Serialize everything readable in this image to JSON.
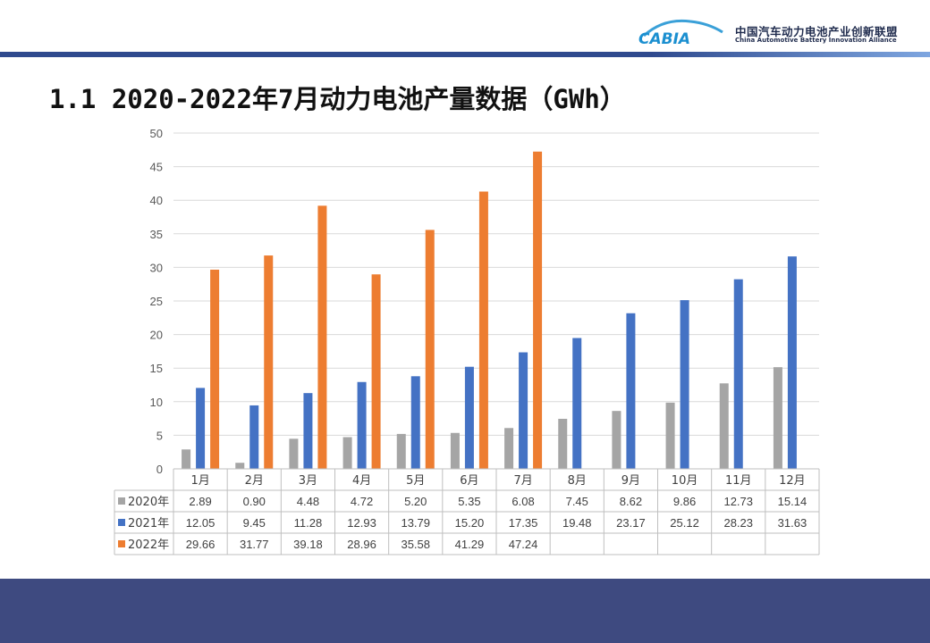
{
  "title": "1.1 2020-2022年7月动力电池产量数据（GWh）",
  "logo": {
    "mark_text": "CABIA",
    "cn": "中国汽车动力电池产业创新联盟",
    "en": "China Automotive Battery Innovation Alliance"
  },
  "chart_data": {
    "type": "bar",
    "categories": [
      "1月",
      "2月",
      "3月",
      "4月",
      "5月",
      "6月",
      "7月",
      "8月",
      "9月",
      "10月",
      "11月",
      "12月"
    ],
    "series": [
      {
        "name": "2020年",
        "color": "#a5a5a5",
        "values": [
          2.89,
          0.9,
          4.48,
          4.72,
          5.2,
          5.35,
          6.08,
          7.45,
          8.62,
          9.86,
          12.73,
          15.14
        ],
        "labels": [
          "2.89",
          "0.90",
          "4.48",
          "4.72",
          "5.20",
          "5.35",
          "6.08",
          "7.45",
          "8.62",
          "9.86",
          "12.73",
          "15.14"
        ]
      },
      {
        "name": "2021年",
        "color": "#4472c4",
        "values": [
          12.05,
          9.45,
          11.28,
          12.93,
          13.79,
          15.2,
          17.35,
          19.48,
          23.17,
          25.12,
          28.23,
          31.63
        ],
        "labels": [
          "12.05",
          "9.45",
          "11.28",
          "12.93",
          "13.79",
          "15.20",
          "17.35",
          "19.48",
          "23.17",
          "25.12",
          "28.23",
          "31.63"
        ]
      },
      {
        "name": "2022年",
        "color": "#ed7d31",
        "values": [
          29.66,
          31.77,
          39.18,
          28.96,
          35.58,
          41.29,
          47.24,
          null,
          null,
          null,
          null,
          null
        ],
        "labels": [
          "29.66",
          "31.77",
          "39.18",
          "28.96",
          "35.58",
          "41.29",
          "47.24",
          "",
          "",
          "",
          "",
          ""
        ]
      }
    ],
    "yticks": [
      "0",
      "5",
      "10",
      "15",
      "20",
      "25",
      "30",
      "35",
      "40",
      "45",
      "50"
    ],
    "ylim": [
      0,
      50
    ],
    "grid": true,
    "legend": "data-table"
  }
}
